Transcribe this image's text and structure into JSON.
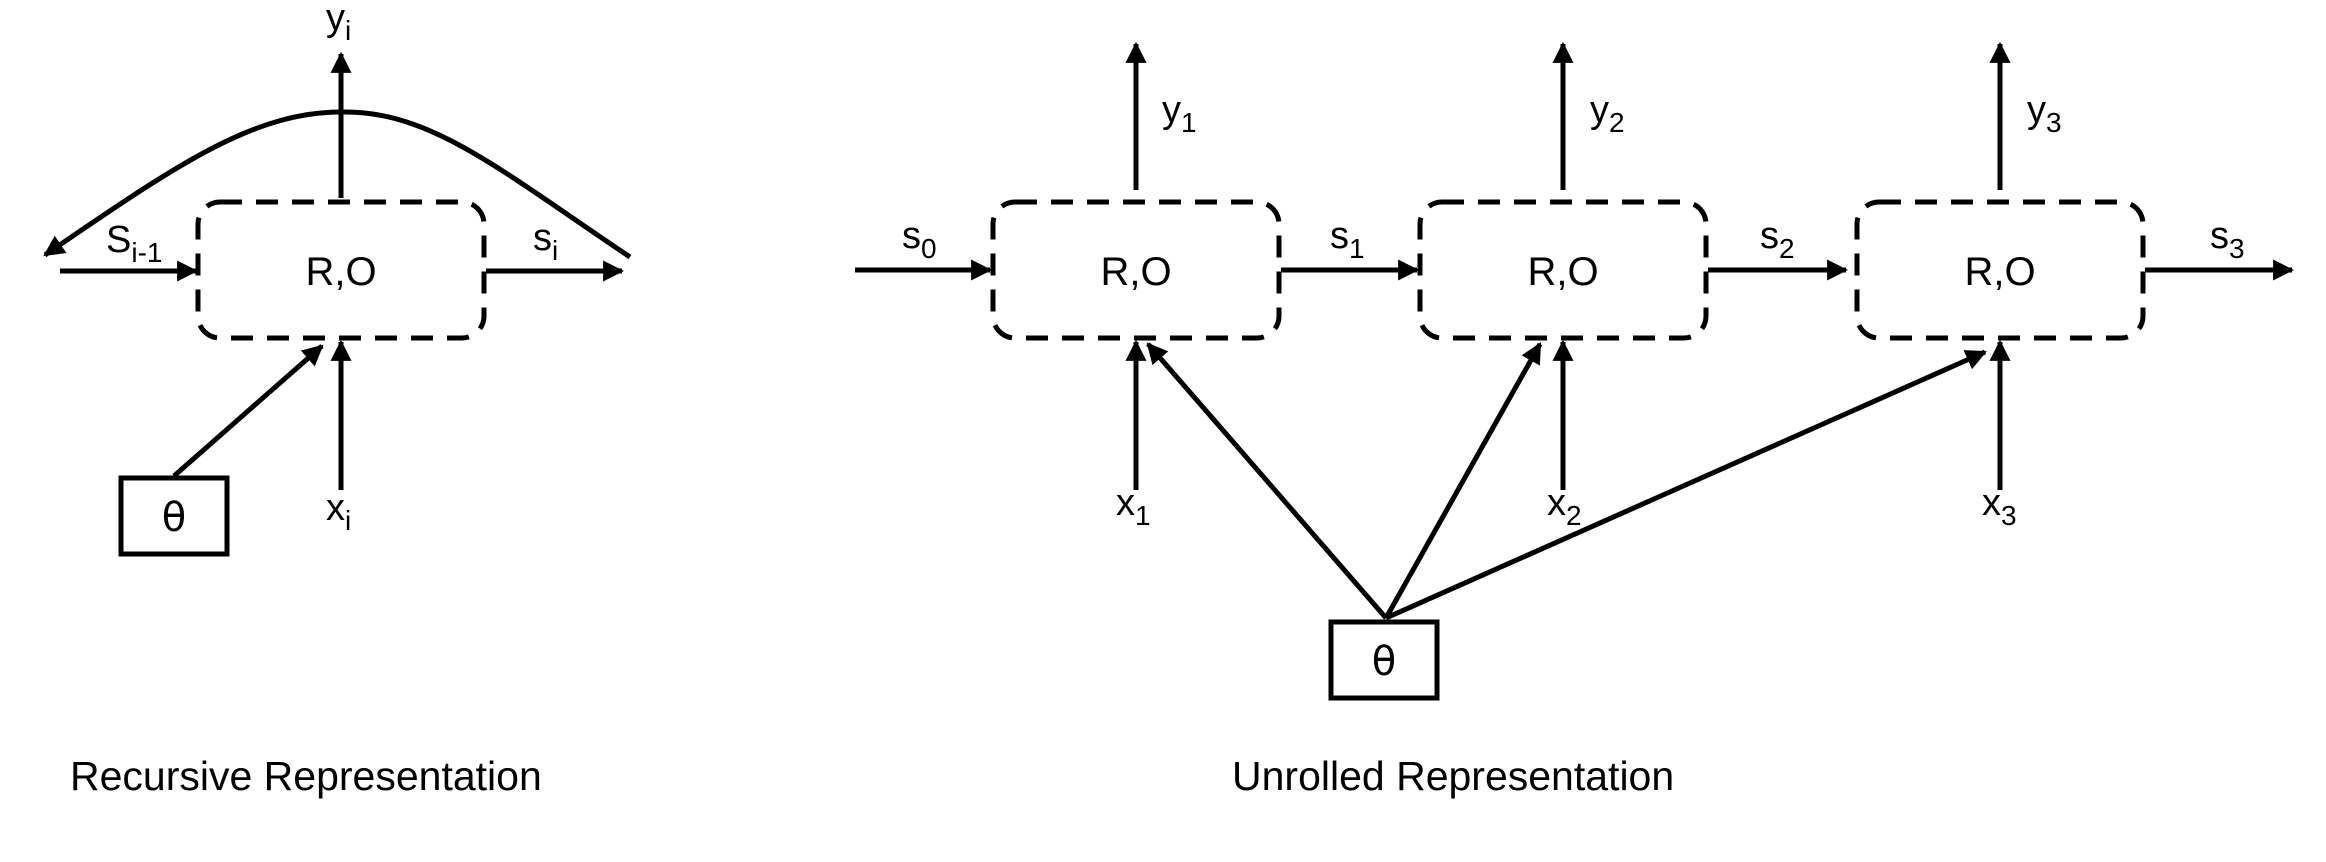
{
  "recursive": {
    "node_label": "R,O",
    "output": {
      "var": "y",
      "sub": "i"
    },
    "input": {
      "var": "x",
      "sub": "i"
    },
    "state_in": {
      "var": "S",
      "sub": "i-1"
    },
    "state_out": {
      "var": "s",
      "sub": "i"
    },
    "param": "θ",
    "caption": "Recursive Representation"
  },
  "unrolled": {
    "nodes": [
      {
        "label": "R,O",
        "output": {
          "var": "y",
          "sub": "1"
        },
        "input": {
          "var": "x",
          "sub": "1"
        }
      },
      {
        "label": "R,O",
        "output": {
          "var": "y",
          "sub": "2"
        },
        "input": {
          "var": "x",
          "sub": "2"
        }
      },
      {
        "label": "R,O",
        "output": {
          "var": "y",
          "sub": "3"
        },
        "input": {
          "var": "x",
          "sub": "3"
        }
      }
    ],
    "states": [
      {
        "var": "s",
        "sub": "0"
      },
      {
        "var": "s",
        "sub": "1"
      },
      {
        "var": "s",
        "sub": "2"
      },
      {
        "var": "s",
        "sub": "3"
      }
    ],
    "param": "θ",
    "caption": "Unrolled Representation"
  }
}
